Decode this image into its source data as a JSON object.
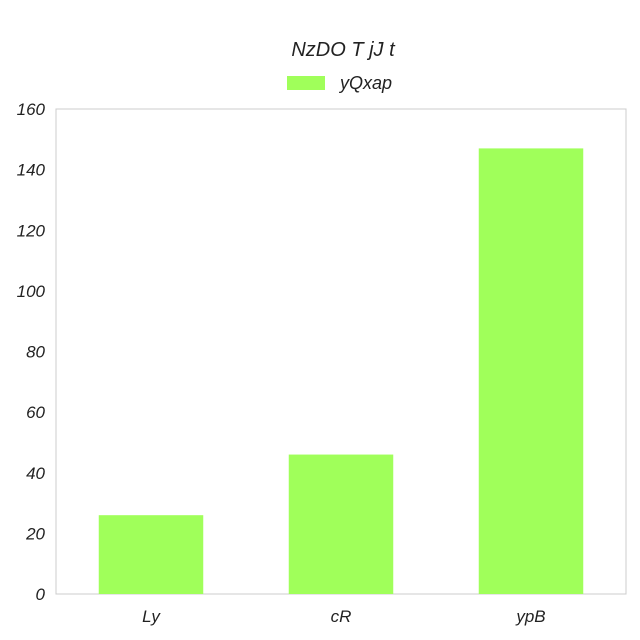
{
  "chart_data": {
    "type": "bar",
    "title": "NzDO T jJ t",
    "xlabel": "",
    "ylabel": "",
    "categories": [
      "Ly",
      "cR",
      "ypB"
    ],
    "series": [
      {
        "name": "yQxap",
        "values": [
          26,
          46,
          147
        ]
      }
    ],
    "ylim": [
      0,
      160
    ],
    "yticks": [
      0,
      20,
      40,
      60,
      80,
      100,
      120,
      140,
      160
    ],
    "grid": false,
    "legend": "top-center",
    "colors": {
      "bar": "#a0ff5a",
      "frame": "#cccccc",
      "text": "#222222"
    }
  }
}
